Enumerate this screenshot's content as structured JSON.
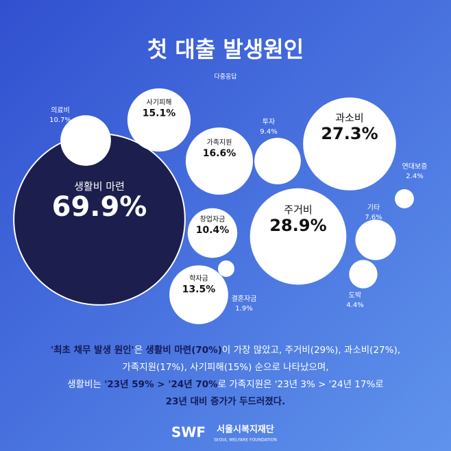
{
  "chart_data": {
    "type": "bubble",
    "title": "첫 대출 발생원인",
    "subtitle": "다중응답",
    "categories": [
      "생활비 마련",
      "주거비",
      "과소비",
      "가족지원",
      "사기피해",
      "학자금",
      "의료비",
      "창업자금",
      "투자",
      "기타",
      "도박",
      "연대보증",
      "결혼자금"
    ],
    "values": [
      69.9,
      28.9,
      27.3,
      16.6,
      15.1,
      13.5,
      10.7,
      10.4,
      9.4,
      7.6,
      4.4,
      2.4,
      1.9
    ],
    "value_labels": [
      "69.9%",
      "28.9%",
      "27.3%",
      "16.6%",
      "15.1%",
      "13.5%",
      "10.7%",
      "10.4%",
      "9.4%",
      "7.6%",
      "4.4%",
      "2.4%",
      "1.9%"
    ],
    "color": "#ffffff",
    "highlight_color": "#1c1e4d"
  },
  "caption": {
    "lines": [
      [
        {
          "text": "'최초 채무 발생 원인'",
          "bold": true
        },
        {
          "text": "은 ",
          "bold": false
        },
        {
          "text": "생활비 마련(70%)",
          "bold": true
        },
        {
          "text": "이 가장 많았고, 주거비(29%), 과소비(27%),",
          "bold": false
        }
      ],
      [
        {
          "text": "가족지원(17%), 사기피해(15%) 순으로 나타났으며,",
          "bold": false
        }
      ],
      [
        {
          "text": "생활비는 ",
          "bold": false
        },
        {
          "text": "'23년 59% > '24년 70%",
          "bold": true
        },
        {
          "text": "로 가족지원은 '23년 3% > '24년 17%로",
          "bold": false
        }
      ],
      [
        {
          "text": "23년 대비 증가가 두드러졌다.",
          "bold": true
        }
      ]
    ]
  },
  "logo": {
    "mark": "SWF",
    "name": "서울시복지재단",
    "tagline": "SEOUL WELFARE FOUNDATION"
  }
}
